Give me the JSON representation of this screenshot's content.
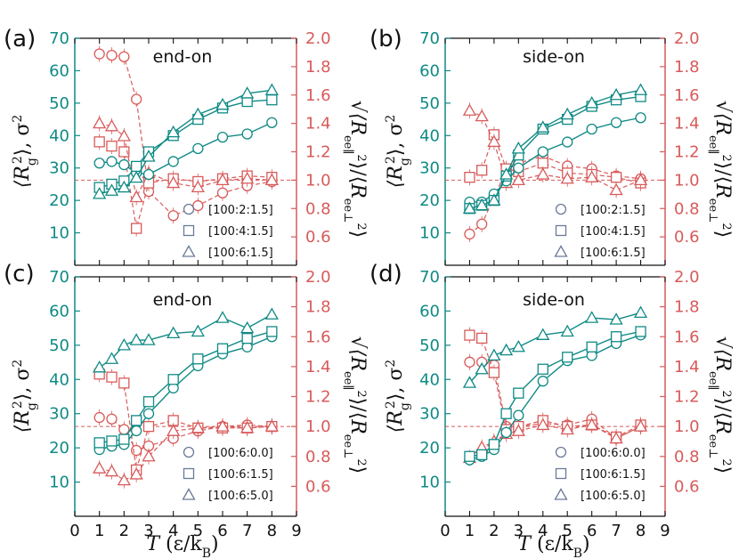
{
  "chart_data": [
    {
      "type": "line",
      "panel_label": "(a)",
      "title": "end-on",
      "x": [
        1,
        1.5,
        2,
        2.5,
        3,
        4,
        5,
        6,
        7,
        8
      ],
      "left_series": [
        {
          "name": "[100:2:1.5]",
          "marker": "circle",
          "values": [
            31.5,
            32,
            31,
            28.5,
            28,
            32,
            36,
            39.5,
            40.5,
            44
          ]
        },
        {
          "name": "[100:4:1.5]",
          "marker": "square",
          "values": [
            24,
            25,
            26,
            30.5,
            35,
            40,
            45,
            48.5,
            50.5,
            51
          ]
        },
        {
          "name": "[100:6:1.5]",
          "marker": "triangle",
          "values": [
            22,
            23,
            24,
            27,
            33.5,
            41,
            46.5,
            49.5,
            53,
            54
          ]
        }
      ],
      "right_series": [
        {
          "name": "[100:2:1.5]",
          "marker": "circle",
          "values": [
            1.89,
            1.88,
            1.87,
            1.57,
            0.92,
            0.75,
            0.82,
            0.91,
            0.96,
            0.99
          ]
        },
        {
          "name": "[100:4:1.5]",
          "marker": "square",
          "values": [
            1.27,
            1.24,
            1.2,
            0.66,
            0.98,
            1.01,
            0.99,
            1.01,
            1.03,
            1.02
          ]
        },
        {
          "name": "[100:6:1.5]",
          "marker": "triangle",
          "values": [
            1.4,
            1.38,
            1.31,
            0.88,
            1.05,
            0.98,
            0.95,
            1.0,
            1.01,
            1.0
          ]
        }
      ],
      "legend": [
        "[100:2:1.5]",
        "[100:4:1.5]",
        "[100:6:1.5]"
      ]
    },
    {
      "type": "line",
      "panel_label": "(b)",
      "title": "side-on",
      "x": [
        1,
        1.5,
        2,
        2.5,
        3,
        4,
        5,
        6,
        7,
        8
      ],
      "left_series": [
        {
          "name": "[100:2:1.5]",
          "marker": "circle",
          "values": [
            19.5,
            19.5,
            22,
            26,
            30,
            35,
            38,
            42,
            44,
            45.5
          ]
        },
        {
          "name": "[100:4:1.5]",
          "marker": "square",
          "values": [
            17.5,
            18.5,
            20,
            27.5,
            34,
            42,
            45,
            49,
            51,
            52
          ]
        },
        {
          "name": "[100:6:1.5]",
          "marker": "triangle",
          "values": [
            17.5,
            18.5,
            20,
            28,
            36,
            42.5,
            46.5,
            50,
            52.5,
            54
          ]
        }
      ],
      "right_series": [
        {
          "name": "[100:2:1.5]",
          "marker": "circle",
          "values": [
            0.62,
            0.69,
            0.88,
            1.07,
            1.12,
            1.17,
            1.1,
            1.08,
            1.03,
            1.01
          ]
        },
        {
          "name": "[100:4:1.5]",
          "marker": "square",
          "values": [
            1.02,
            1.07,
            1.32,
            1.08,
            1.06,
            1.12,
            1.05,
            1.04,
            1.02,
            0.98
          ]
        },
        {
          "name": "[100:6:1.5]",
          "marker": "triangle",
          "values": [
            1.49,
            1.45,
            1.27,
            0.98,
            1.0,
            1.04,
            1.01,
            1.02,
            0.93,
            1.0
          ]
        }
      ],
      "legend": [
        "[100:2:1.5]",
        "[100:4:1.5]",
        "[100:6:1.5]"
      ]
    },
    {
      "type": "line",
      "panel_label": "(c)",
      "title": "end-on",
      "x": [
        1,
        1.5,
        2,
        2.5,
        3,
        4,
        5,
        6,
        7,
        8
      ],
      "left_series": [
        {
          "name": "[100:6:0.0]",
          "marker": "circle",
          "values": [
            19.5,
            20.5,
            21,
            25,
            30,
            37.5,
            44,
            47.5,
            49.5,
            52.5
          ]
        },
        {
          "name": "[100:6:1.5]",
          "marker": "square",
          "values": [
            21.5,
            22,
            22.5,
            28,
            33.5,
            40,
            46,
            49,
            52,
            54
          ]
        },
        {
          "name": "[100:6:5.0]",
          "marker": "triangle",
          "values": [
            43.5,
            46,
            50,
            51.5,
            51.5,
            53.5,
            54,
            58,
            55,
            59
          ]
        }
      ],
      "right_series": [
        {
          "name": "[100:6:0.0]",
          "marker": "circle",
          "values": [
            1.06,
            1.05,
            0.98,
            0.84,
            0.87,
            0.92,
            0.97,
            1.0,
            1.01,
            1.0
          ]
        },
        {
          "name": "[100:6:1.5]",
          "marker": "square",
          "values": [
            1.35,
            1.33,
            1.29,
            0.71,
            1.0,
            1.04,
            0.99,
            0.99,
            0.99,
            1.0
          ]
        },
        {
          "name": "[100:6:5.0]",
          "marker": "triangle",
          "values": [
            0.72,
            0.7,
            0.64,
            0.68,
            0.8,
            0.97,
            0.99,
            1.0,
            0.99,
            1.0
          ]
        }
      ],
      "legend": [
        "[100:6:0.0]",
        "[100:6:1.5]",
        "[100:6:5.0]"
      ]
    },
    {
      "type": "line",
      "panel_label": "(d)",
      "title": "side-on",
      "x": [
        1,
        1.5,
        2,
        2.5,
        3,
        4,
        5,
        6,
        7,
        8
      ],
      "left_series": [
        {
          "name": "[100:6:0.0]",
          "marker": "circle",
          "values": [
            16.5,
            17.5,
            19.5,
            24.5,
            29.5,
            39.5,
            45.5,
            47,
            50.5,
            53
          ]
        },
        {
          "name": "[100:6:1.5]",
          "marker": "square",
          "values": [
            17.5,
            18,
            21,
            30,
            36,
            43,
            46.5,
            49.5,
            52.5,
            54
          ]
        },
        {
          "name": "[100:6:5.0]",
          "marker": "triangle",
          "values": [
            39,
            43,
            47,
            48.5,
            49.5,
            53,
            54,
            58,
            57.5,
            59.5
          ]
        }
      ],
      "right_series": [
        {
          "name": "[100:6:0.0]",
          "marker": "circle",
          "values": [
            1.43,
            1.43,
            1.41,
            1.0,
            1.0,
            1.02,
            1.01,
            1.05,
            0.92,
            1.0
          ]
        },
        {
          "name": "[100:6:1.5]",
          "marker": "square",
          "values": [
            1.61,
            1.59,
            1.36,
            0.98,
            1.0,
            1.04,
            1.0,
            1.01,
            0.93,
            1.01
          ]
        },
        {
          "name": "[100:6:5.0]",
          "marker": "triangle",
          "values": [
            0.79,
            0.86,
            0.9,
            0.95,
            0.97,
            1.01,
            0.98,
            1.01,
            0.92,
            1.0
          ]
        }
      ],
      "legend": [
        "[100:6:0.0]",
        "[100:6:1.5]",
        "[100:6:5.0]"
      ]
    }
  ],
  "axes": {
    "left_range": [
      0,
      70
    ],
    "left_ticks": [
      10,
      20,
      30,
      40,
      50,
      60,
      70
    ],
    "right_range": [
      0.4,
      2.0
    ],
    "right_ticks": [
      0.6,
      0.8,
      1.0,
      1.2,
      1.4,
      1.6,
      1.8,
      2.0
    ],
    "x_range": [
      0,
      9
    ],
    "x_ticks": [
      0,
      1,
      2,
      3,
      4,
      5,
      6,
      7,
      8,
      9
    ],
    "reference_line": 1.0,
    "left_label": "⟨R_g²⟩, σ²",
    "right_label": "√(⟨R_ee∥²⟩/⟨R_ee⊥²⟩)",
    "x_label": "T (ε/k_B)"
  },
  "colors": {
    "teal": "#0f8a85",
    "red": "#d85a5a",
    "axis": "#111111"
  }
}
